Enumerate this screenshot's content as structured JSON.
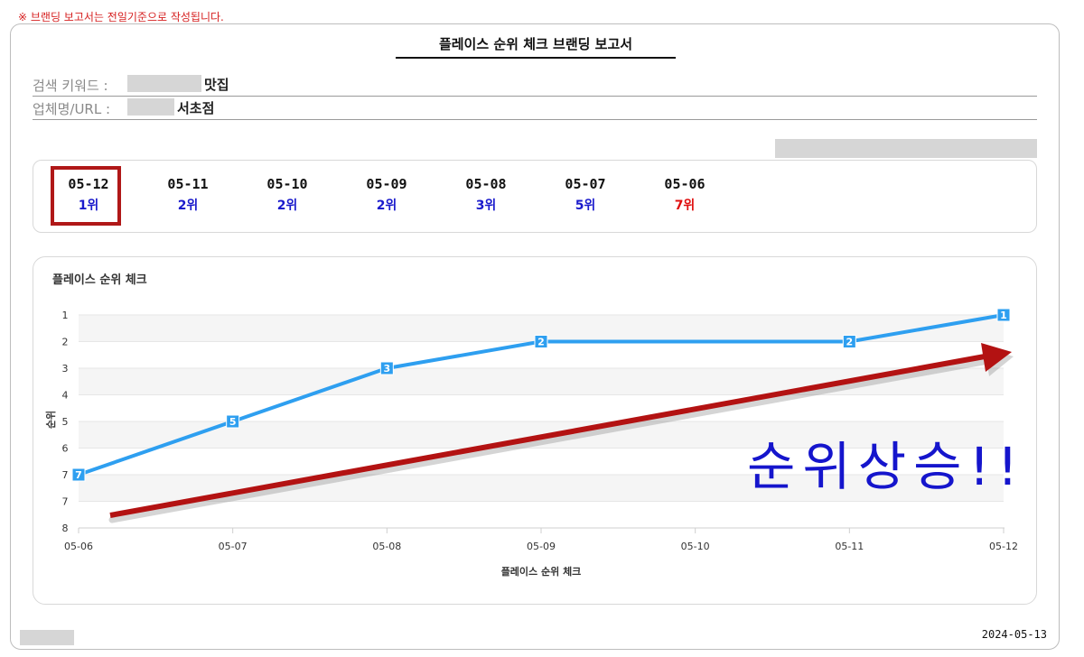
{
  "notice": "※ 브랜딩 보고서는 전일기준으로 작성됩니다.",
  "report_title": "플레이스 순위 체크 브랜딩 보고서",
  "info": {
    "keyword_label": "검색 키워드 :",
    "keyword_value": "맛집",
    "business_label": "업체명/URL :",
    "business_value": "서초점"
  },
  "ranks": [
    {
      "date": "05-12",
      "rank": "1위",
      "color": "#1a1acc"
    },
    {
      "date": "05-11",
      "rank": "2위",
      "color": "#1a1acc"
    },
    {
      "date": "05-10",
      "rank": "2위",
      "color": "#1a1acc"
    },
    {
      "date": "05-09",
      "rank": "2위",
      "color": "#1a1acc"
    },
    {
      "date": "05-08",
      "rank": "3위",
      "color": "#1a1acc"
    },
    {
      "date": "05-07",
      "rank": "5위",
      "color": "#1a1acc"
    },
    {
      "date": "05-06",
      "rank": "7위",
      "color": "#e01010"
    }
  ],
  "chart_data": {
    "type": "line",
    "title": "플레이스 순위 체크",
    "xlabel": "플레이스 순위 체크",
    "ylabel": "순위",
    "categories": [
      "05-06",
      "05-07",
      "05-08",
      "05-09",
      "05-10",
      "05-11",
      "05-12"
    ],
    "y_ticks": [
      "1",
      "2",
      "3",
      "4",
      "5",
      "6",
      "7",
      "7",
      "8"
    ],
    "y_reversed": true,
    "grid": true,
    "series": [
      {
        "values": [
          7,
          5,
          3,
          2,
          2,
          2,
          1
        ],
        "point_labels": [
          "7",
          "5",
          "3",
          "2",
          null,
          "2",
          "1"
        ],
        "color": "#2e9ff0"
      }
    ],
    "annotation": {
      "text": "순위상승!!",
      "text_color": "#1515cc",
      "arrow_color": "#b31212"
    }
  },
  "footer_date": "2024-05-13"
}
